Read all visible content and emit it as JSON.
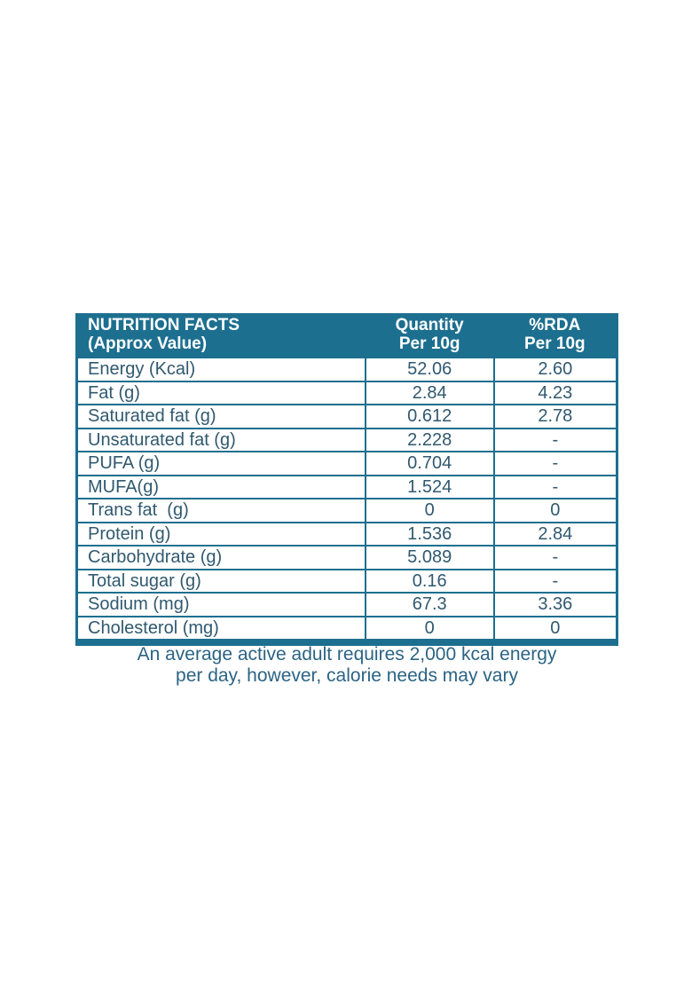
{
  "colors": {
    "accent_teal": "#1d6f8f",
    "body_text": "#30596f",
    "header_text": "#ffffff",
    "background": "#ffffff"
  },
  "table": {
    "header": {
      "col1_line1": "NUTRITION FACTS",
      "col1_line2": "(Approx Value)",
      "col2_line1": "Quantity",
      "col2_line2": "Per 10g",
      "col3_line1": "%RDA",
      "col3_line2": "Per 10g"
    },
    "rows": [
      {
        "label": "Energy (Kcal)",
        "quantity": "52.06",
        "rda": "2.60"
      },
      {
        "label": "Fat (g)",
        "quantity": "2.84",
        "rda": "4.23"
      },
      {
        "label": "Saturated fat (g)",
        "quantity": "0.612",
        "rda": "2.78"
      },
      {
        "label": "Unsaturated fat (g)",
        "quantity": "2.228",
        "rda": "-"
      },
      {
        "label": "PUFA (g)",
        "quantity": "0.704",
        "rda": "-"
      },
      {
        "label": "MUFA(g)",
        "quantity": "1.524",
        "rda": "-"
      },
      {
        "label": "Trans fat  (g)",
        "quantity": "0",
        "rda": "0"
      },
      {
        "label": "Protein (g)",
        "quantity": "1.536",
        "rda": "2.84"
      },
      {
        "label": "Carbohydrate (g)",
        "quantity": "5.089",
        "rda": "-"
      },
      {
        "label": "Total sugar (g)",
        "quantity": "0.16",
        "rda": "-"
      },
      {
        "label": "Sodium (mg)",
        "quantity": "67.3",
        "rda": "3.36"
      },
      {
        "label": "Cholesterol (mg)",
        "quantity": "0",
        "rda": "0"
      }
    ]
  },
  "footer": {
    "line1": "An average active adult requires 2,000 kcal energy",
    "line2": "per day, however, calorie needs may vary"
  }
}
